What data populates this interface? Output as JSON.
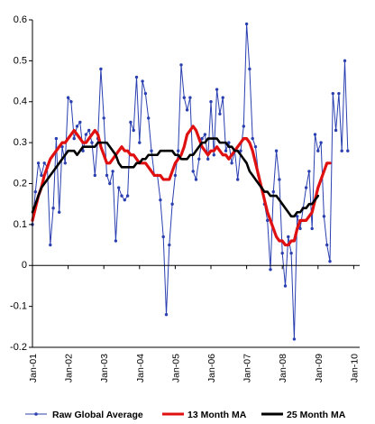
{
  "chart_data": {
    "type": "line",
    "title": "",
    "xlabel": "",
    "ylabel": "",
    "ylim": [
      -0.2,
      0.6
    ],
    "yticks": [
      "0.6",
      "0.5",
      "0.4",
      "0.3",
      "0.2",
      "0.1",
      "0",
      "-0.1",
      "-0.2"
    ],
    "ytick_values": [
      0.6,
      0.5,
      0.4,
      0.3,
      0.2,
      0.1,
      0,
      -0.1,
      -0.2
    ],
    "xtick_labels": [
      "Jan-01",
      "Jan-02",
      "Jan-03",
      "Jan-04",
      "Jan-05",
      "Jan-06",
      "Jan-07",
      "Jan-08",
      "Jan-09",
      "Jan-10"
    ],
    "xtick_month_index": [
      0,
      12,
      24,
      36,
      48,
      60,
      72,
      84,
      96,
      108
    ],
    "x_range_months": [
      0,
      110
    ],
    "grid": false,
    "legend_position": "bottom",
    "colors": {
      "raw": "#2a3fb0",
      "ma13": "#e01010",
      "ma25": "#000000"
    },
    "series": [
      {
        "name": "Raw Global Average",
        "style": "line-marker",
        "start_month": 0,
        "values": [
          0.1,
          0.18,
          0.25,
          0.22,
          0.25,
          0.24,
          0.05,
          0.14,
          0.31,
          0.13,
          0.29,
          0.25,
          0.41,
          0.4,
          0.31,
          0.34,
          0.35,
          0.28,
          0.32,
          0.33,
          0.3,
          0.22,
          0.31,
          0.48,
          0.36,
          0.22,
          0.2,
          0.23,
          0.06,
          0.19,
          0.17,
          0.16,
          0.17,
          0.35,
          0.33,
          0.46,
          0.3,
          0.45,
          0.42,
          0.36,
          0.28,
          0.22,
          0.22,
          0.16,
          0.07,
          -0.12,
          0.05,
          0.15,
          0.22,
          0.28,
          0.49,
          0.41,
          0.38,
          0.41,
          0.23,
          0.21,
          0.26,
          0.31,
          0.32,
          0.26,
          0.4,
          0.27,
          0.43,
          0.37,
          0.41,
          0.28,
          0.3,
          0.25,
          0.28,
          0.21,
          0.28,
          0.34,
          0.59,
          0.48,
          0.31,
          0.29,
          0.22,
          0.19,
          0.15,
          0.11,
          -0.01,
          0.18,
          0.28,
          0.21,
          0.03,
          -0.05,
          0.07,
          0.03,
          -0.18,
          0.12,
          0.09,
          0.14,
          0.19,
          0.23,
          0.09,
          0.32,
          0.28,
          0.3,
          0.12,
          0.05,
          0.01,
          0.42,
          0.33,
          0.42,
          0.28,
          0.5,
          0.28
        ]
      },
      {
        "name": "13 Month MA",
        "style": "line",
        "start_month": 0,
        "values": [
          0.11,
          0.14,
          0.17,
          0.19,
          0.22,
          0.24,
          0.26,
          0.27,
          0.28,
          0.29,
          0.3,
          0.3,
          0.31,
          0.32,
          0.33,
          0.32,
          0.31,
          0.3,
          0.3,
          0.31,
          0.32,
          0.33,
          0.32,
          0.29,
          0.27,
          0.25,
          0.25,
          0.26,
          0.27,
          0.28,
          0.29,
          0.28,
          0.28,
          0.27,
          0.27,
          0.26,
          0.25,
          0.25,
          0.25,
          0.24,
          0.23,
          0.22,
          0.22,
          0.22,
          0.21,
          0.21,
          0.21,
          0.23,
          0.25,
          0.26,
          0.27,
          0.29,
          0.32,
          0.33,
          0.34,
          0.33,
          0.31,
          0.29,
          0.28,
          0.27,
          0.28,
          0.28,
          0.29,
          0.28,
          0.27,
          0.27,
          0.26,
          0.27,
          0.28,
          0.29,
          0.3,
          0.31,
          0.31,
          0.3,
          0.28,
          0.25,
          0.22,
          0.19,
          0.16,
          0.13,
          0.11,
          0.09,
          0.07,
          0.06,
          0.06,
          0.05,
          0.05,
          0.06,
          0.06,
          0.09,
          0.11,
          0.11,
          0.11,
          0.12,
          0.13,
          0.16,
          0.19,
          0.21,
          0.23,
          0.25,
          0.25
        ]
      },
      {
        "name": "25 Month MA",
        "style": "line",
        "start_month": 0,
        "values": [
          0.13,
          0.15,
          0.17,
          0.19,
          0.2,
          0.21,
          0.22,
          0.23,
          0.24,
          0.25,
          0.26,
          0.27,
          0.28,
          0.28,
          0.28,
          0.27,
          0.28,
          0.29,
          0.29,
          0.29,
          0.29,
          0.29,
          0.3,
          0.3,
          0.3,
          0.3,
          0.29,
          0.28,
          0.27,
          0.25,
          0.24,
          0.24,
          0.24,
          0.24,
          0.24,
          0.25,
          0.25,
          0.26,
          0.26,
          0.27,
          0.27,
          0.27,
          0.27,
          0.28,
          0.28,
          0.28,
          0.28,
          0.28,
          0.27,
          0.27,
          0.26,
          0.26,
          0.26,
          0.27,
          0.27,
          0.28,
          0.29,
          0.3,
          0.3,
          0.31,
          0.31,
          0.31,
          0.31,
          0.3,
          0.3,
          0.3,
          0.29,
          0.29,
          0.28,
          0.28,
          0.27,
          0.26,
          0.25,
          0.23,
          0.22,
          0.21,
          0.2,
          0.19,
          0.18,
          0.18,
          0.17,
          0.17,
          0.17,
          0.16,
          0.15,
          0.14,
          0.13,
          0.12,
          0.12,
          0.13,
          0.13,
          0.14,
          0.14,
          0.15,
          0.15,
          0.16,
          0.17
        ]
      }
    ]
  }
}
